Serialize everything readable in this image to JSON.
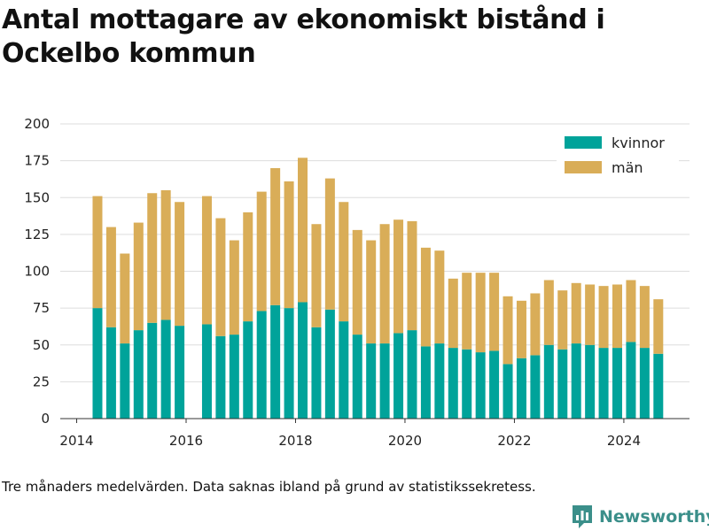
{
  "title": "Antal mottagare av ekonomiskt bistånd i Ockelbo kommun",
  "footnote": "Tre månaders medelvärden. Data saknas ibland på grund av statistikssekretess.",
  "brand": {
    "name": "Newsworthy",
    "icon": "bar-chart-logo-icon",
    "color": "#3b8f8a"
  },
  "colors": {
    "kvinnor": "#00a39a",
    "man": "#d9ad58",
    "grid": "#dddddd",
    "axis": "#333333"
  },
  "chart_data": {
    "type": "bar",
    "stacked": true,
    "title": "Antal mottagare av ekonomiskt bistånd i Ockelbo kommun",
    "xlabel": "",
    "ylabel": "",
    "xlim": [
      2013.7,
      2025.2
    ],
    "ylim": [
      0,
      200
    ],
    "yticks": [
      0,
      25,
      50,
      75,
      100,
      125,
      150,
      175,
      200
    ],
    "xticks": [
      2014,
      2016,
      2018,
      2020,
      2022,
      2024
    ],
    "grid": true,
    "legend_position": "top-right",
    "x": [
      2014.38,
      2014.63,
      2014.88,
      2015.13,
      2015.38,
      2015.63,
      2015.88,
      2016.38,
      2016.63,
      2016.88,
      2017.13,
      2017.38,
      2017.63,
      2017.88,
      2018.13,
      2018.38,
      2018.63,
      2018.88,
      2019.13,
      2019.38,
      2019.63,
      2019.88,
      2020.13,
      2020.38,
      2020.63,
      2020.88,
      2021.13,
      2021.38,
      2021.63,
      2021.88,
      2022.13,
      2022.38,
      2022.63,
      2022.88,
      2023.13,
      2023.38,
      2023.63,
      2023.88,
      2024.13,
      2024.38,
      2024.63
    ],
    "series": [
      {
        "name": "kvinnor",
        "values": [
          75,
          62,
          51,
          60,
          65,
          67,
          63,
          64,
          56,
          57,
          66,
          73,
          77,
          75,
          79,
          62,
          74,
          66,
          57,
          51,
          51,
          58,
          60,
          49,
          51,
          48,
          47,
          45,
          46,
          37,
          41,
          43,
          50,
          47,
          51,
          50,
          48,
          48,
          52,
          48,
          44
        ]
      },
      {
        "name": "män",
        "values": [
          76,
          68,
          61,
          73,
          88,
          88,
          84,
          87,
          80,
          64,
          74,
          81,
          93,
          86,
          98,
          70,
          89,
          81,
          71,
          70,
          81,
          77,
          74,
          67,
          63,
          47,
          52,
          54,
          53,
          46,
          39,
          42,
          44,
          40,
          41,
          41,
          42,
          43,
          42,
          42,
          37
        ]
      }
    ]
  }
}
